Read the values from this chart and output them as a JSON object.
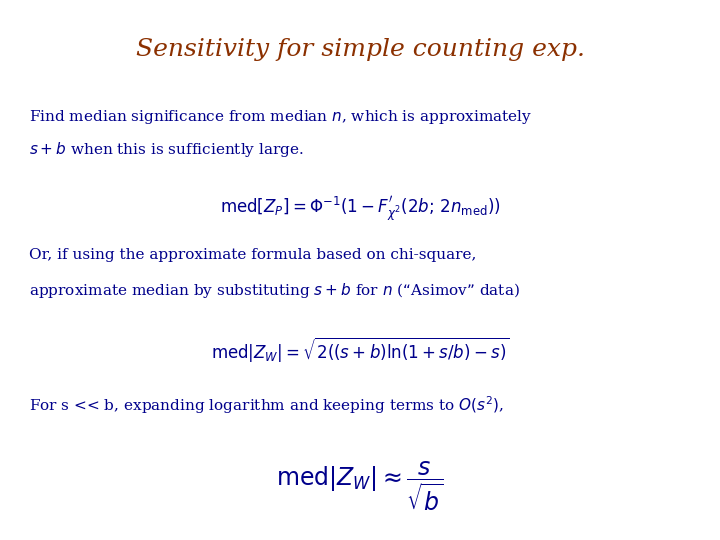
{
  "title": "Sensitivity for simple counting exp.",
  "title_color": "#8B3000",
  "title_fontsize": 18,
  "bg_color": "#FFFFFF",
  "text_color": "#00008B",
  "body_fontsize": 11,
  "eq_fontsize": 12,
  "eq1_latex": "$\\mathrm{med}[Z_P] = \\Phi^{-1}(1 - F^{\\prime}_{\\chi^2}(2b;\\,2n_{\\mathrm{med}}))$",
  "eq2_latex": "$\\mathrm{med}|Z_W| = \\sqrt{2\\left((s+b)\\ln(1+s/b) - s\\right)}$",
  "eq3_latex": "$\\mathrm{med}|Z_W| \\approx \\dfrac{s}{\\sqrt{b}}$",
  "para1_line1": "Find median significance from median $n$, which is approximately",
  "para1_line2": "$s + b$ when this is sufficiently large.",
  "para2_line1": "Or, if using the approximate formula based on chi-square,",
  "para2_line2": "approximate median by substituting $s + b$ for $n$ (“Asimov” data)",
  "para3_line1": "For s << b, expanding logarithm and keeping terms to $O(s^2)$,"
}
